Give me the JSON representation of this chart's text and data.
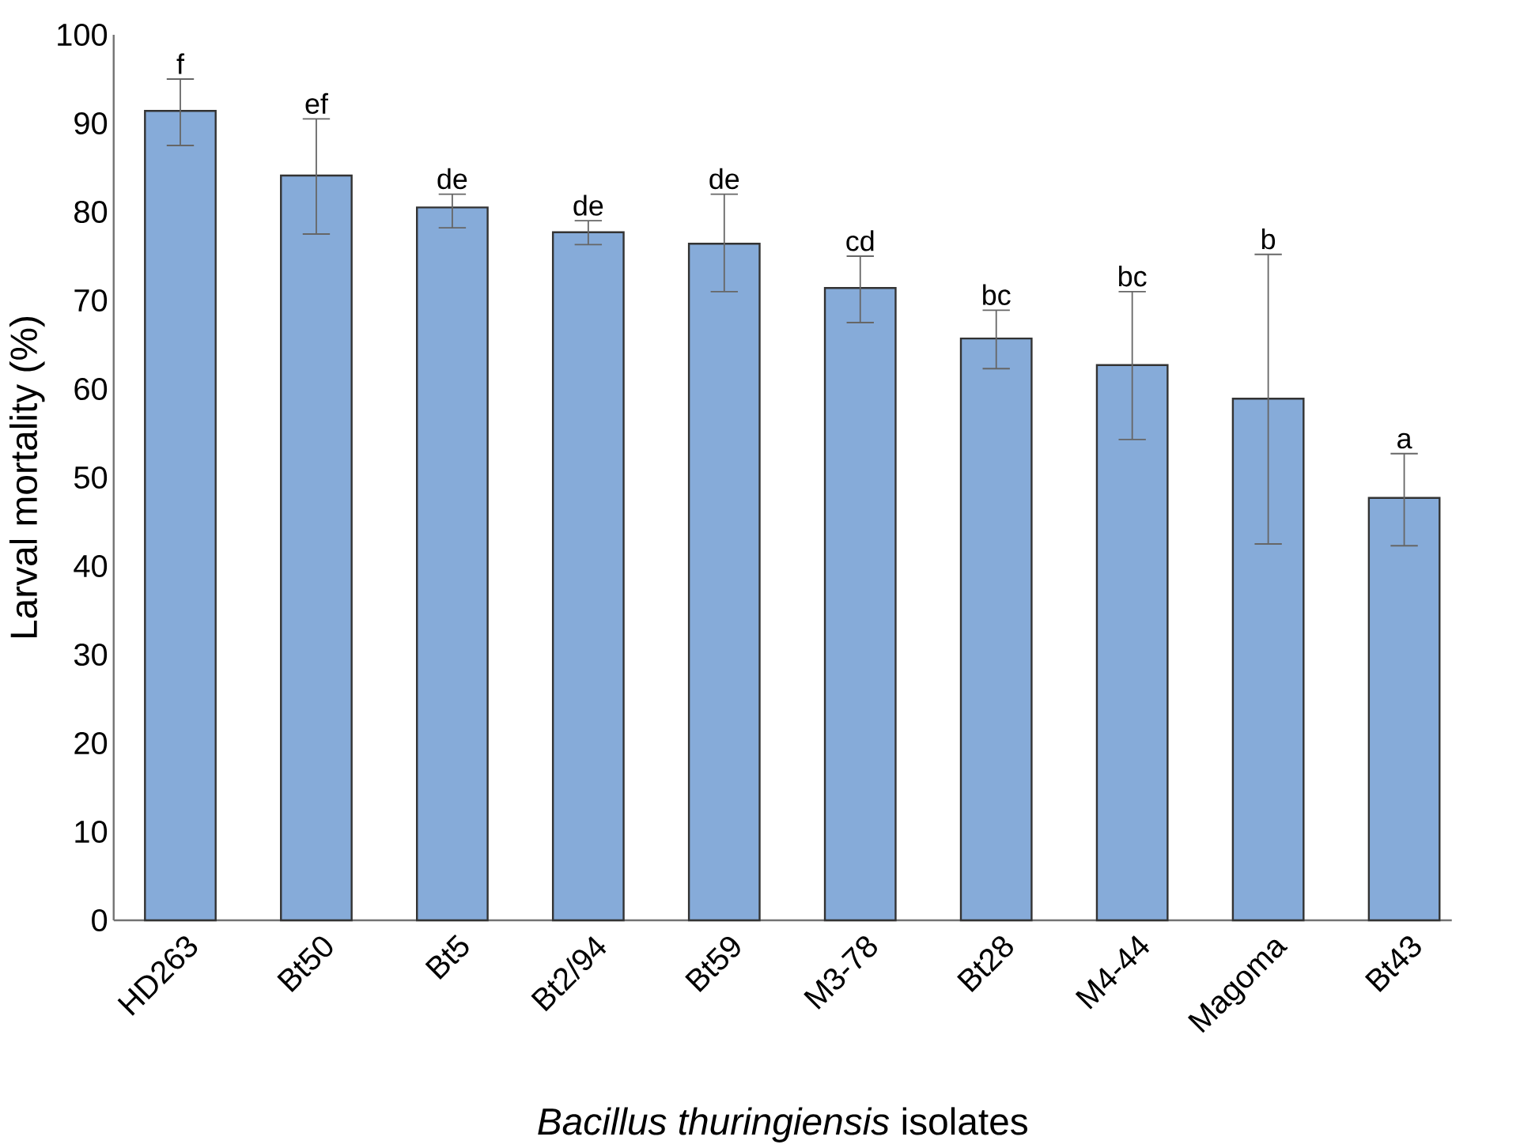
{
  "chart_data": {
    "type": "bar",
    "xlabel": "*Bacillus thuringiensis* isolates",
    "ylabel": "Larval mortality (%)",
    "categories": [
      "HD263",
      "Bt50",
      "Bt5",
      "Bt2/94",
      "Bt59",
      "M3-78",
      "Bt28",
      "M4-44",
      "Magoma",
      "Bt43"
    ],
    "values": [
      91.4,
      84.1,
      80.5,
      77.7,
      76.4,
      71.4,
      65.7,
      62.7,
      58.9,
      47.7
    ],
    "errors": [
      [
        87.5,
        95.0
      ],
      [
        77.5,
        90.5
      ],
      [
        78.2,
        82.0
      ],
      [
        76.3,
        79.0
      ],
      [
        71.0,
        82.0
      ],
      [
        67.5,
        75.0
      ],
      [
        62.3,
        68.9
      ],
      [
        54.3,
        71.0
      ],
      [
        42.5,
        75.2
      ],
      [
        42.3,
        52.7
      ]
    ],
    "color": "#86abd9",
    "ylim": [
      0,
      100
    ],
    "yticks": [
      0,
      10,
      20,
      30,
      40,
      50,
      60,
      70,
      80,
      90,
      100
    ],
    "grid": false,
    "annotations": [
      {
        "text": "f",
        "x": "HD263",
        "y": 95.0
      },
      {
        "text": "ef",
        "x": "Bt50",
        "y": 90.5
      },
      {
        "text": "de",
        "x": "Bt5",
        "y": 82.0
      },
      {
        "text": "de",
        "x": "Bt2/94",
        "y": 79.0
      },
      {
        "text": "de",
        "x": "Bt59",
        "y": 82.0
      },
      {
        "text": "cd",
        "x": "M3-78",
        "y": 75.0
      },
      {
        "text": "bc",
        "x": "Bt28",
        "y": 68.9
      },
      {
        "text": "bc",
        "x": "M4-44",
        "y": 71.0
      },
      {
        "text": "b",
        "x": "Magoma",
        "y": 75.2
      },
      {
        "text": "a",
        "x": "Bt43",
        "y": 52.7
      }
    ]
  }
}
